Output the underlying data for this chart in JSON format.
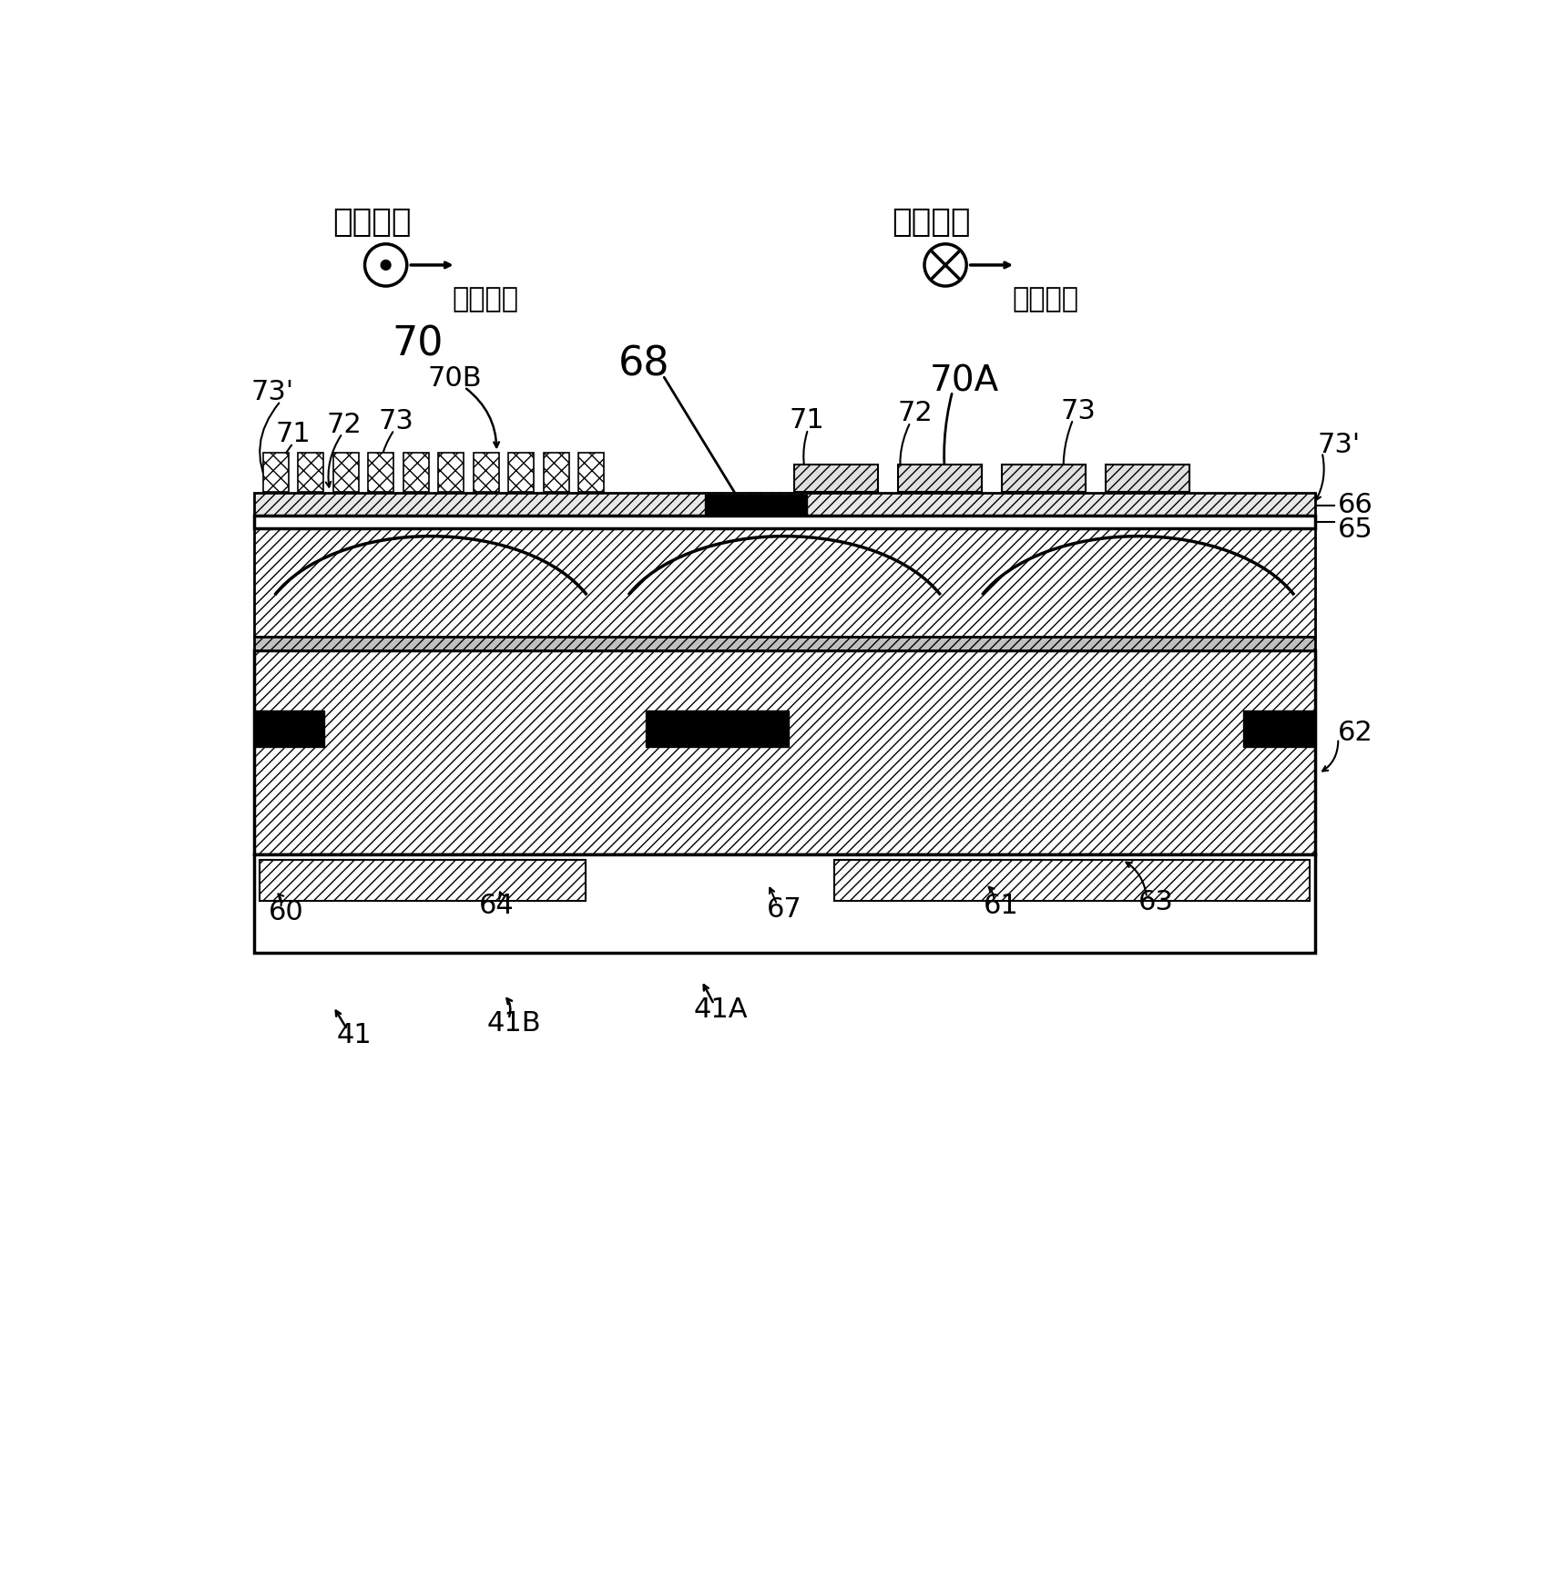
{
  "fig_width": 16.92,
  "fig_height": 17.4,
  "bg_color": "#ffffff",
  "labels": {
    "first_dir_left": "第一方向",
    "second_dir_left": "第二方向",
    "first_dir_right": "第二方向",
    "second_dir_right": "第一方向",
    "label_70": "70",
    "label_70A": "70A",
    "label_70B": "70B",
    "label_68": "68",
    "label_71_left": "71",
    "label_72_left": "72",
    "label_73_left": "73",
    "label_73p_left": "73'",
    "label_71_right": "71",
    "label_72_right": "72",
    "label_73_right": "73",
    "label_73p_right": "73'",
    "label_66": "66",
    "label_65": "65",
    "label_62": "62",
    "label_64": "64",
    "label_67": "67",
    "label_60": "60",
    "label_61": "61",
    "label_63": "63",
    "label_41": "41",
    "label_41A": "41A",
    "label_41B": "41B"
  }
}
